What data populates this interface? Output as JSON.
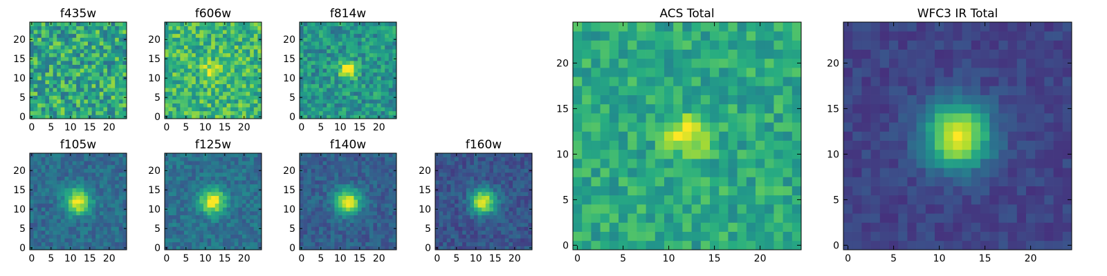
{
  "colormap": {
    "name": "viridis",
    "stops": [
      "#440154",
      "#472d7b",
      "#3b528b",
      "#2c728e",
      "#21918c",
      "#28ae80",
      "#5ec962",
      "#addc30",
      "#fde725"
    ]
  },
  "chart_data": [
    {
      "type": "heatmap",
      "title": "f435w",
      "xlim": [
        -0.5,
        24.5
      ],
      "ylim": [
        -0.5,
        24.5
      ],
      "xticks": [
        0,
        5,
        10,
        15,
        20
      ],
      "yticks": [
        0,
        5,
        10,
        15,
        20
      ],
      "grid": false,
      "legend": "none",
      "grid_size": [
        25,
        25
      ],
      "source": {
        "center": [
          12,
          12
        ],
        "sigma": 1.0,
        "peak": 0.0
      },
      "background": 0.6,
      "noise": 0.24,
      "clip": [
        0.0,
        1.0
      ],
      "seed": 11
    },
    {
      "type": "heatmap",
      "title": "f606w",
      "xlim": [
        -0.5,
        24.5
      ],
      "ylim": [
        -0.5,
        24.5
      ],
      "xticks": [
        0,
        5,
        10,
        15,
        20
      ],
      "yticks": [
        0,
        5,
        10,
        15,
        20
      ],
      "grid": false,
      "legend": "none",
      "grid_size": [
        25,
        25
      ],
      "source": {
        "center": [
          12,
          12
        ],
        "sigma": 1.6,
        "peak": 0.3
      },
      "background": 0.66,
      "noise": 0.2,
      "clip": [
        0.0,
        1.0
      ],
      "seed": 23
    },
    {
      "type": "heatmap",
      "title": "f814w",
      "xlim": [
        -0.5,
        24.5
      ],
      "ylim": [
        -0.5,
        24.5
      ],
      "xticks": [
        0,
        5,
        10,
        15,
        20
      ],
      "yticks": [
        0,
        5,
        10,
        15,
        20
      ],
      "grid": false,
      "legend": "none",
      "grid_size": [
        25,
        25
      ],
      "source": {
        "center": [
          12,
          12
        ],
        "sigma": 1.5,
        "peak": 0.55
      },
      "background": 0.52,
      "noise": 0.17,
      "clip": [
        0.0,
        1.0
      ],
      "seed": 37
    },
    {
      "type": "heatmap",
      "title": "f105w",
      "xlim": [
        -0.5,
        24.5
      ],
      "ylim": [
        -0.5,
        24.5
      ],
      "xticks": [
        0,
        5,
        10,
        15,
        20
      ],
      "yticks": [
        0,
        5,
        10,
        15,
        20
      ],
      "grid": false,
      "legend": "none",
      "grid_size": [
        25,
        25
      ],
      "source": {
        "center": [
          12,
          12
        ],
        "sigma": 2.3,
        "peak": 0.65
      },
      "background": 0.35,
      "noise": 0.1,
      "clip": [
        0.0,
        1.0
      ],
      "seed": 41
    },
    {
      "type": "heatmap",
      "title": "f125w",
      "xlim": [
        -0.5,
        24.5
      ],
      "ylim": [
        -0.5,
        24.5
      ],
      "xticks": [
        0,
        5,
        10,
        15,
        20
      ],
      "yticks": [
        0,
        5,
        10,
        15,
        20
      ],
      "grid": false,
      "legend": "none",
      "grid_size": [
        25,
        25
      ],
      "source": {
        "center": [
          12,
          12
        ],
        "sigma": 2.3,
        "peak": 0.62
      },
      "background": 0.37,
      "noise": 0.1,
      "clip": [
        0.0,
        1.0
      ],
      "seed": 53
    },
    {
      "type": "heatmap",
      "title": "f140w",
      "xlim": [
        -0.5,
        24.5
      ],
      "ylim": [
        -0.5,
        24.5
      ],
      "xticks": [
        0,
        5,
        10,
        15,
        20
      ],
      "yticks": [
        0,
        5,
        10,
        15,
        20
      ],
      "grid": false,
      "legend": "none",
      "grid_size": [
        25,
        25
      ],
      "source": {
        "center": [
          12,
          12
        ],
        "sigma": 2.3,
        "peak": 0.68
      },
      "background": 0.3,
      "noise": 0.09,
      "clip": [
        0.0,
        1.0
      ],
      "seed": 67
    },
    {
      "type": "heatmap",
      "title": "f160w",
      "xlim": [
        -0.5,
        24.5
      ],
      "ylim": [
        -0.5,
        24.5
      ],
      "xticks": [
        0,
        5,
        10,
        15,
        20
      ],
      "yticks": [
        0,
        5,
        10,
        15,
        20
      ],
      "grid": false,
      "legend": "none",
      "grid_size": [
        25,
        25
      ],
      "source": {
        "center": [
          12,
          12
        ],
        "sigma": 2.3,
        "peak": 0.72
      },
      "background": 0.26,
      "noise": 0.09,
      "clip": [
        0.0,
        1.0
      ],
      "seed": 79
    },
    {
      "type": "heatmap",
      "title": "ACS Total",
      "xlim": [
        -0.5,
        24.5
      ],
      "ylim": [
        -0.5,
        24.5
      ],
      "xticks": [
        0,
        5,
        10,
        15,
        20
      ],
      "yticks": [
        0,
        5,
        10,
        15,
        20
      ],
      "grid": false,
      "legend": "none",
      "grid_size": [
        25,
        25
      ],
      "source": {
        "center": [
          12,
          12
        ],
        "sigma": 1.5,
        "peak": 0.42
      },
      "background": 0.6,
      "noise": 0.14,
      "clip": [
        0.0,
        1.0
      ],
      "seed": 97
    },
    {
      "type": "heatmap",
      "title": "WFC3 IR Total",
      "xlim": [
        -0.5,
        24.5
      ],
      "ylim": [
        -0.5,
        24.5
      ],
      "xticks": [
        0,
        5,
        10,
        15,
        20
      ],
      "yticks": [
        0,
        5,
        10,
        15,
        20
      ],
      "grid": false,
      "legend": "none",
      "grid_size": [
        25,
        25
      ],
      "source": {
        "center": [
          12,
          12
        ],
        "sigma": 2.5,
        "peak": 0.8
      },
      "background": 0.2,
      "noise": 0.06,
      "clip": [
        0.0,
        1.0
      ],
      "seed": 113
    }
  ]
}
